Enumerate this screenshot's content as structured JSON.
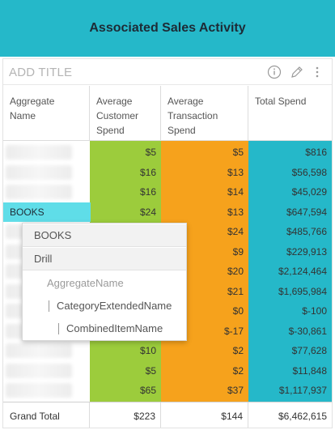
{
  "header": {
    "title": "Associated Sales Activity"
  },
  "panel": {
    "add_title": "ADD TITLE"
  },
  "table": {
    "columns": [
      "Aggregate Name",
      "Average Customer Spend",
      "Average Transaction Spend",
      "Total Spend"
    ],
    "rows": [
      {
        "name": "",
        "customer": "$5",
        "transaction": "$5",
        "total": "$816"
      },
      {
        "name": "",
        "customer": "$16",
        "transaction": "$13",
        "total": "$56,598"
      },
      {
        "name": "",
        "customer": "$16",
        "transaction": "$14",
        "total": "$45,029"
      },
      {
        "name": "BOOKS",
        "customer": "$24",
        "transaction": "$13",
        "total": "$647,594"
      },
      {
        "name": "",
        "customer": "",
        "transaction": "$24",
        "total": "$485,766"
      },
      {
        "name": "",
        "customer": "",
        "transaction": "$9",
        "total": "$229,913"
      },
      {
        "name": "",
        "customer": "",
        "transaction": "$20",
        "total": "$2,124,464"
      },
      {
        "name": "",
        "customer": "",
        "transaction": "$21",
        "total": "$1,695,984"
      },
      {
        "name": "",
        "customer": "",
        "transaction": "$0",
        "total": "$-100"
      },
      {
        "name": "",
        "customer": "",
        "transaction": "$-17",
        "total": "$-30,861"
      },
      {
        "name": "",
        "customer": "$10",
        "transaction": "$2",
        "total": "$77,628"
      },
      {
        "name": "",
        "customer": "$5",
        "transaction": "$2",
        "total": "$11,848"
      },
      {
        "name": "",
        "customer": "$65",
        "transaction": "$37",
        "total": "$1,117,937"
      }
    ],
    "total": {
      "name": "Grand Total",
      "customer": "$223",
      "transaction": "$144",
      "total": "$6,462,615"
    }
  },
  "popup": {
    "title": "BOOKS",
    "drill": "Drill",
    "items": [
      "AggregateName",
      "CategoryExtendedName",
      "CombinedItemName"
    ]
  },
  "colors": {
    "header": "#25b8c9",
    "green": "#9ccc3c",
    "orange": "#f6a21c",
    "blue": "#25b8c9",
    "selected": "#5fdde8"
  }
}
